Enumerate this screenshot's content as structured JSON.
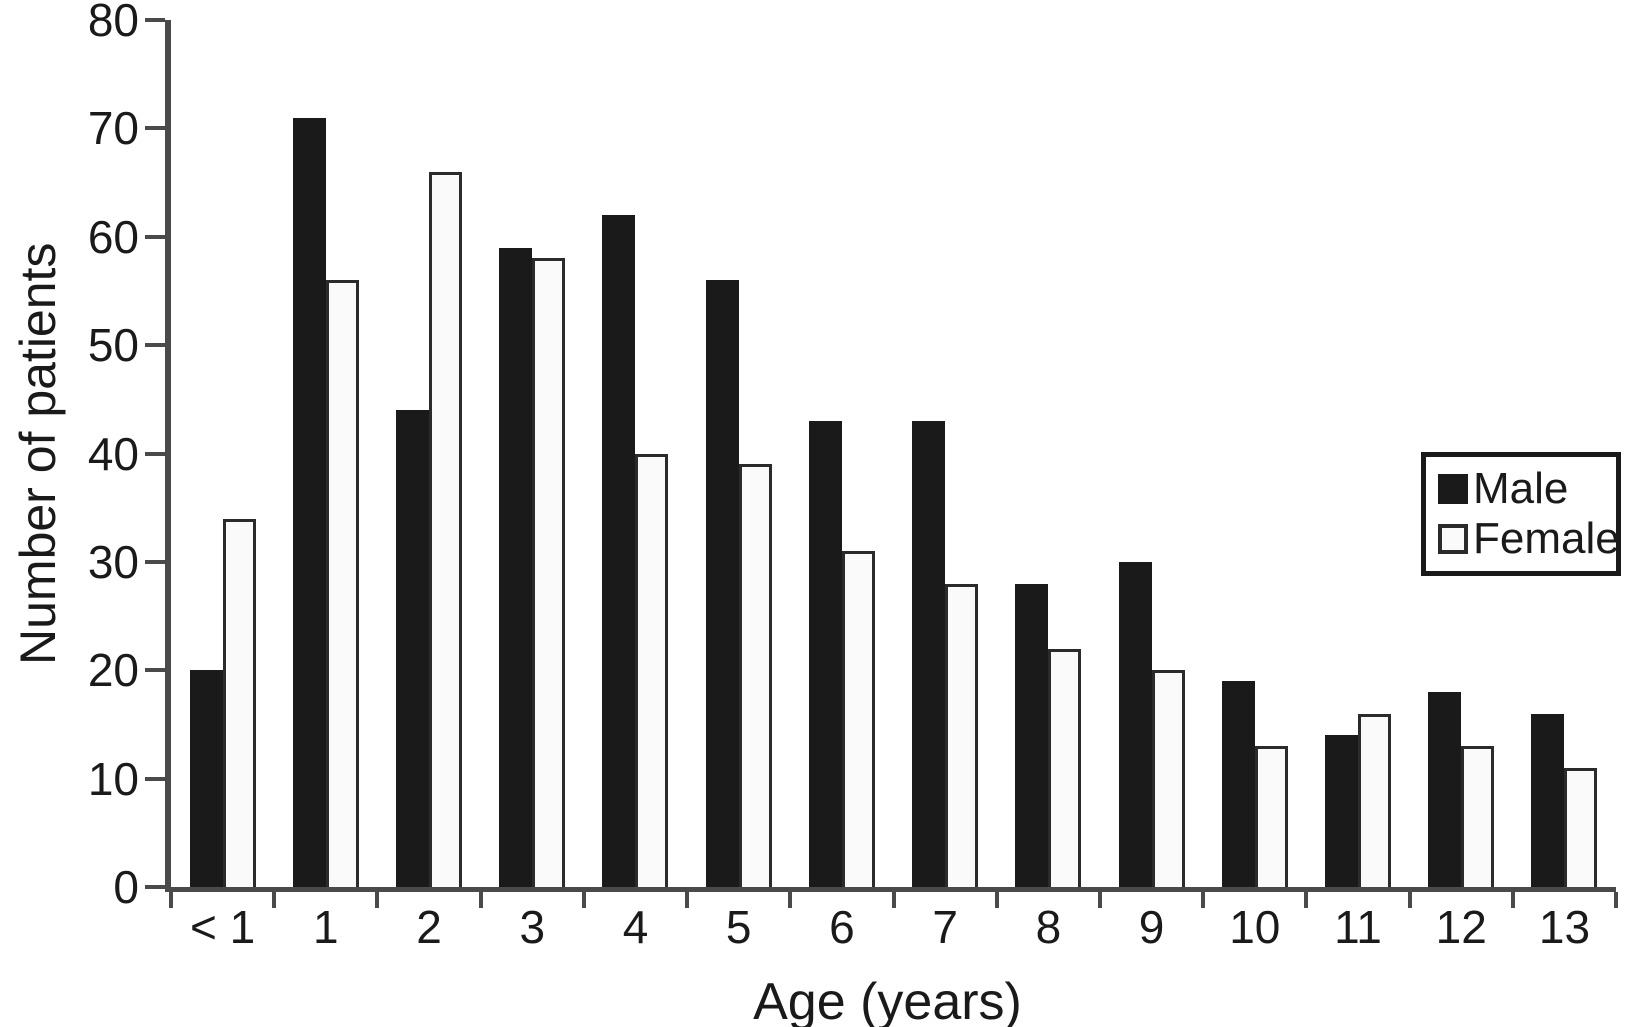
{
  "figure": {
    "kind": "grouped-bar-chart-figure"
  },
  "chart_data": {
    "type": "bar",
    "title": "",
    "xlabel": "Age (years)",
    "ylabel": "Number of patients",
    "categories": [
      "< 1",
      "1",
      "2",
      "3",
      "4",
      "5",
      "6",
      "7",
      "8",
      "9",
      "10",
      "11",
      "12",
      "13"
    ],
    "series": [
      {
        "name": "Male",
        "fill": "#1a1a1a",
        "values": [
          20,
          71,
          44,
          59,
          62,
          56,
          43,
          43,
          28,
          30,
          19,
          14,
          18,
          16
        ]
      },
      {
        "name": "Female",
        "fill": "#fafafa",
        "values": [
          34,
          56,
          66,
          58,
          40,
          39,
          31,
          28,
          22,
          20,
          13,
          16,
          13,
          11
        ]
      }
    ],
    "ylim": [
      0,
      80
    ],
    "yticks": [
      0,
      10,
      20,
      30,
      40,
      50,
      60,
      70,
      80
    ],
    "grid": false,
    "legend_position": "right-inside"
  },
  "colors": {
    "male_fill": "#1a1a1a",
    "female_fill": "#fafafa",
    "female_border": "#2b2b2b",
    "axis": "#4a4a4a",
    "text": "#1a1a1a",
    "background": "#ffffff"
  }
}
